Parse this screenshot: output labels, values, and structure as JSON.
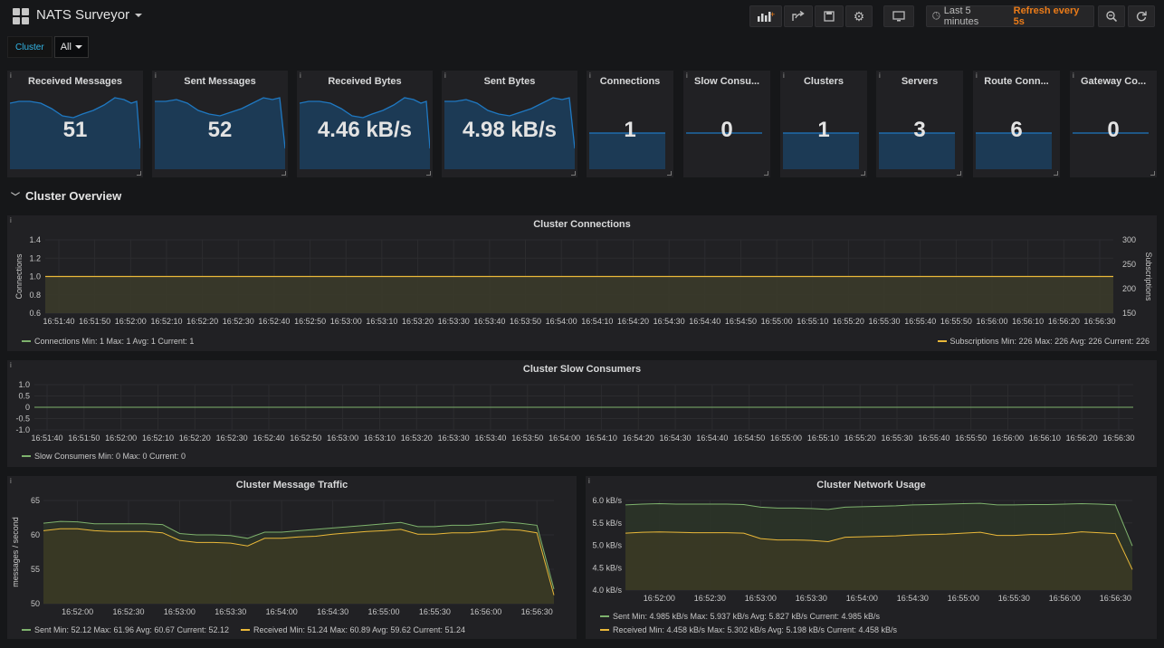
{
  "header": {
    "title": "NATS Surveyor",
    "time_range": "Last 5 minutes",
    "refresh": "Refresh every 5s"
  },
  "vars": {
    "label": "Cluster",
    "value": "All"
  },
  "stats": [
    {
      "title": "Received Messages",
      "value": "51"
    },
    {
      "title": "Sent Messages",
      "value": "52"
    },
    {
      "title": "Received Bytes",
      "value": "4.46 kB/s"
    },
    {
      "title": "Sent Bytes",
      "value": "4.98 kB/s"
    },
    {
      "title": "Connections",
      "value": "1"
    },
    {
      "title": "Slow Consu...",
      "value": "0"
    },
    {
      "title": "Clusters",
      "value": "1"
    },
    {
      "title": "Servers",
      "value": "3"
    },
    {
      "title": "Route Conn...",
      "value": "6"
    },
    {
      "title": "Gateway Co...",
      "value": "0"
    }
  ],
  "row": {
    "title": "Cluster Overview"
  },
  "colors": {
    "green": "#7eb26d",
    "yellow": "#eab839",
    "blue": "#1f78c1"
  },
  "panels": {
    "connections": {
      "title": "Cluster Connections",
      "ylabel": "Connections",
      "y2label": "Subscriptions",
      "yticks": [
        "1.4",
        "1.2",
        "1.0",
        "0.8",
        "0.6"
      ],
      "y2ticks": [
        "300",
        "250",
        "200",
        "150"
      ],
      "xticks": [
        "16:51:40",
        "16:51:50",
        "16:52:00",
        "16:52:10",
        "16:52:20",
        "16:52:30",
        "16:52:40",
        "16:52:50",
        "16:53:00",
        "16:53:10",
        "16:53:20",
        "16:53:30",
        "16:53:40",
        "16:53:50",
        "16:54:00",
        "16:54:10",
        "16:54:20",
        "16:54:30",
        "16:54:40",
        "16:54:50",
        "16:55:00",
        "16:55:10",
        "16:55:20",
        "16:55:30",
        "16:55:40",
        "16:55:50",
        "16:56:00",
        "16:56:10",
        "16:56:20",
        "16:56:30"
      ],
      "legend_left": "Connections  Min: 1  Max: 1  Avg: 1  Current: 1",
      "legend_right": "Subscriptions  Min: 226  Max: 226  Avg: 226  Current: 226"
    },
    "slow": {
      "title": "Cluster Slow Consumers",
      "yticks": [
        "1.0",
        "0.5",
        "0",
        "-0.5",
        "-1.0"
      ],
      "xticks": [
        "16:51:40",
        "16:51:50",
        "16:52:00",
        "16:52:10",
        "16:52:20",
        "16:52:30",
        "16:52:40",
        "16:52:50",
        "16:53:00",
        "16:53:10",
        "16:53:20",
        "16:53:30",
        "16:53:40",
        "16:53:50",
        "16:54:00",
        "16:54:10",
        "16:54:20",
        "16:54:30",
        "16:54:40",
        "16:54:50",
        "16:55:00",
        "16:55:10",
        "16:55:20",
        "16:55:30",
        "16:55:40",
        "16:55:50",
        "16:56:00",
        "16:56:10",
        "16:56:20",
        "16:56:30"
      ],
      "legend": "Slow Consumers  Min: 0  Max: 0  Current: 0"
    },
    "traffic": {
      "title": "Cluster Message Traffic",
      "ylabel": "messages / second",
      "yticks": [
        "65",
        "60",
        "55",
        "50"
      ],
      "xticks": [
        "16:52:00",
        "16:52:30",
        "16:53:00",
        "16:53:30",
        "16:54:00",
        "16:54:30",
        "16:55:00",
        "16:55:30",
        "16:56:00",
        "16:56:30"
      ],
      "legend_sent": "Sent  Min: 52.12  Max: 61.96  Avg: 60.67  Current: 52.12",
      "legend_recv": "Received  Min: 51.24  Max: 60.89  Avg: 59.62  Current: 51.24"
    },
    "network": {
      "title": "Cluster Network Usage",
      "yticks": [
        "6.0 kB/s",
        "5.5 kB/s",
        "5.0 kB/s",
        "4.5 kB/s",
        "4.0 kB/s"
      ],
      "xticks": [
        "16:52:00",
        "16:52:30",
        "16:53:00",
        "16:53:30",
        "16:54:00",
        "16:54:30",
        "16:55:00",
        "16:55:30",
        "16:56:00",
        "16:56:30"
      ],
      "legend_sent": "Sent  Min: 4.985 kB/s  Max: 5.937 kB/s  Avg: 5.827 kB/s  Current: 4.985 kB/s",
      "legend_recv": "Received  Min: 4.458 kB/s  Max: 5.302 kB/s  Avg: 5.198 kB/s  Current: 4.458 kB/s"
    }
  },
  "chart_data": [
    {
      "type": "line",
      "title": "Cluster Connections",
      "xlabel": "",
      "ylabel": "Connections",
      "y2label": "Subscriptions",
      "ylim": [
        0.6,
        1.4
      ],
      "y2lim": [
        150,
        300
      ],
      "series": [
        {
          "name": "Connections",
          "values": [
            1,
            1
          ]
        },
        {
          "name": "Subscriptions",
          "values": [
            226,
            226
          ]
        }
      ]
    },
    {
      "type": "line",
      "title": "Cluster Slow Consumers",
      "ylim": [
        -1.0,
        1.0
      ],
      "series": [
        {
          "name": "Slow Consumers",
          "values": [
            0,
            0
          ]
        }
      ]
    },
    {
      "type": "area",
      "title": "Cluster Message Traffic",
      "ylabel": "messages / second",
      "ylim": [
        50,
        65
      ],
      "x": [
        "16:51:40",
        "16:51:50",
        "16:52:00",
        "16:52:10",
        "16:52:20",
        "16:52:30",
        "16:52:40",
        "16:52:50",
        "16:53:00",
        "16:53:10",
        "16:53:20",
        "16:53:30",
        "16:53:40",
        "16:53:50",
        "16:54:00",
        "16:54:10",
        "16:54:20",
        "16:54:30",
        "16:54:40",
        "16:54:50",
        "16:55:00",
        "16:55:10",
        "16:55:20",
        "16:55:30",
        "16:55:40",
        "16:55:50",
        "16:56:00",
        "16:56:10",
        "16:56:20",
        "16:56:30",
        "16:56:35"
      ],
      "series": [
        {
          "name": "Sent",
          "values": [
            61.7,
            61.96,
            61.9,
            61.6,
            61.6,
            61.6,
            61.6,
            61.5,
            60.2,
            60.0,
            60.0,
            59.9,
            59.5,
            60.4,
            60.4,
            60.6,
            60.8,
            61.0,
            61.2,
            61.4,
            61.6,
            61.8,
            61.2,
            61.2,
            61.4,
            61.4,
            61.6,
            61.9,
            61.7,
            61.4,
            52.12
          ]
        },
        {
          "name": "Received",
          "values": [
            60.6,
            60.89,
            60.9,
            60.6,
            60.5,
            60.5,
            60.5,
            60.3,
            59.2,
            58.9,
            58.9,
            58.8,
            58.4,
            59.5,
            59.5,
            59.7,
            59.8,
            60.1,
            60.3,
            60.5,
            60.6,
            60.8,
            60.1,
            60.1,
            60.3,
            60.3,
            60.5,
            60.8,
            60.7,
            60.3,
            51.24
          ]
        }
      ]
    },
    {
      "type": "area",
      "title": "Cluster Network Usage",
      "ylim": [
        4.0,
        6.0
      ],
      "x": [
        "16:51:40",
        "16:51:50",
        "16:52:00",
        "16:52:10",
        "16:52:20",
        "16:52:30",
        "16:52:40",
        "16:52:50",
        "16:53:00",
        "16:53:10",
        "16:53:20",
        "16:53:30",
        "16:53:40",
        "16:53:50",
        "16:54:00",
        "16:54:10",
        "16:54:20",
        "16:54:30",
        "16:54:40",
        "16:54:50",
        "16:55:00",
        "16:55:10",
        "16:55:20",
        "16:55:30",
        "16:55:40",
        "16:55:50",
        "16:56:00",
        "16:56:10",
        "16:56:20",
        "16:56:30",
        "16:56:35"
      ],
      "series": [
        {
          "name": "Sent",
          "values": [
            5.9,
            5.92,
            5.93,
            5.92,
            5.92,
            5.92,
            5.92,
            5.91,
            5.85,
            5.83,
            5.83,
            5.82,
            5.8,
            5.85,
            5.86,
            5.87,
            5.88,
            5.9,
            5.91,
            5.92,
            5.93,
            5.937,
            5.9,
            5.9,
            5.91,
            5.91,
            5.92,
            5.93,
            5.92,
            5.9,
            4.985
          ]
        },
        {
          "name": "Received",
          "values": [
            5.27,
            5.29,
            5.3,
            5.29,
            5.28,
            5.28,
            5.28,
            5.27,
            5.15,
            5.12,
            5.12,
            5.11,
            5.08,
            5.18,
            5.19,
            5.2,
            5.21,
            5.23,
            5.24,
            5.25,
            5.27,
            5.29,
            5.22,
            5.22,
            5.24,
            5.24,
            5.26,
            5.302,
            5.28,
            5.26,
            4.458
          ]
        }
      ]
    }
  ]
}
